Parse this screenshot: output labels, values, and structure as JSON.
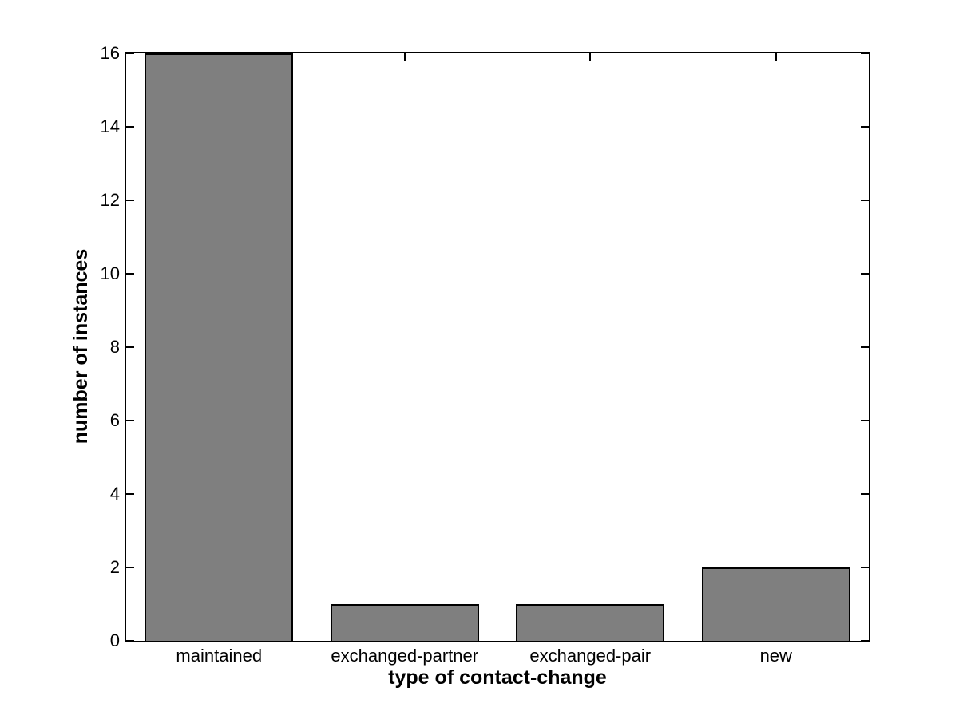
{
  "figure": {
    "background": "#ffffff"
  },
  "chart_data": {
    "type": "bar",
    "categories": [
      "maintained",
      "exchanged-partner",
      "exchanged-pair",
      "new"
    ],
    "values": [
      16,
      1,
      1,
      2
    ],
    "title": "",
    "xlabel": "type of contact-change",
    "ylabel": "number of instances",
    "ylim": [
      0,
      16
    ],
    "yticks": [
      0,
      2,
      4,
      6,
      8,
      10,
      12,
      14,
      16
    ],
    "grid": false,
    "legend": "none",
    "bar_color": "#7f7f7f",
    "bar_edge_color": "#000000",
    "axis_color": "#000000",
    "bar_width_fraction": 0.8,
    "tick_direction": "in",
    "box": true
  }
}
